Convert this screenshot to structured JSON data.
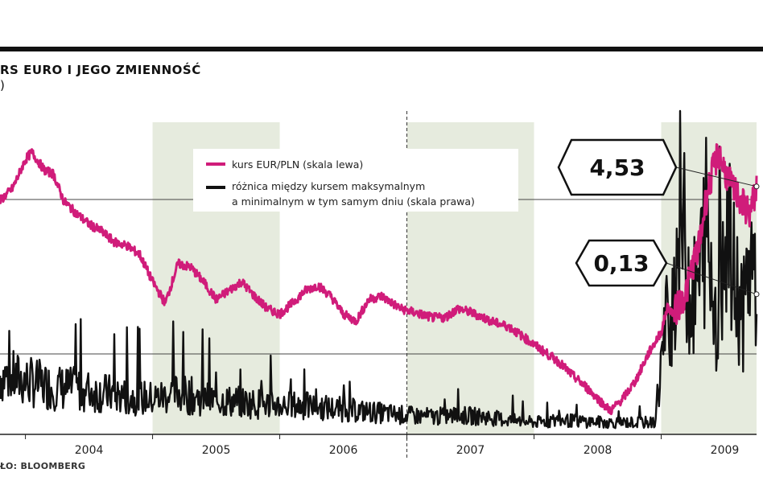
{
  "chart_data": {
    "type": "line",
    "title": "RS EURO I JEGO ZMIENNOŚĆ",
    "subtitle": ")",
    "source": "ŁO: BLOOMBERG",
    "x_tick_labels": [
      "2004",
      "2005",
      "2006",
      "2007",
      "2008",
      "2009"
    ],
    "xlim": [
      2003.3,
      2009.25
    ],
    "shaded_years": [
      2005,
      2007,
      2009
    ],
    "grid": "horizontal reference lines",
    "legend_position": "top-center",
    "colors": {
      "eur_pln": "#d01c7a",
      "spread": "#111111",
      "shade": "#e6ebde"
    },
    "series": [
      {
        "name": "kurs EUR/PLN (skala lewa)",
        "axis": "left",
        "color": "#d01c7a",
        "ylim": [
          3.15,
          4.95
        ],
        "x": [
          2003.3,
          2003.4,
          2003.5,
          2003.55,
          2003.65,
          2003.72,
          2003.8,
          2003.9,
          2004.0,
          2004.1,
          2004.2,
          2004.3,
          2004.4,
          2004.5,
          2004.6,
          2004.7,
          2004.8,
          2004.9,
          2005.0,
          2005.1,
          2005.2,
          2005.3,
          2005.4,
          2005.5,
          2005.6,
          2005.7,
          2005.8,
          2005.9,
          2006.0,
          2006.1,
          2006.2,
          2006.3,
          2006.45,
          2006.6,
          2006.7,
          2006.8,
          2006.9,
          2007.0,
          2007.1,
          2007.2,
          2007.3,
          2007.4,
          2007.5,
          2007.6,
          2007.7,
          2007.8,
          2007.9,
          2008.0,
          2008.1,
          2008.2,
          2008.3,
          2008.4,
          2008.5,
          2008.55,
          2008.6,
          2008.7,
          2008.75,
          2008.8,
          2008.85,
          2008.9,
          2008.95,
          2009.0,
          2009.05,
          2009.1,
          2009.15,
          2009.2,
          2009.25
        ],
        "values": [
          4.45,
          4.52,
          4.68,
          4.72,
          4.62,
          4.6,
          4.45,
          4.38,
          4.32,
          4.28,
          4.22,
          4.2,
          4.15,
          4.0,
          3.88,
          4.1,
          4.08,
          4.0,
          3.9,
          3.95,
          4.0,
          3.92,
          3.85,
          3.82,
          3.88,
          3.95,
          3.98,
          3.92,
          3.82,
          3.78,
          3.9,
          3.92,
          3.85,
          3.82,
          3.8,
          3.8,
          3.85,
          3.83,
          3.8,
          3.77,
          3.75,
          3.7,
          3.65,
          3.6,
          3.55,
          3.48,
          3.42,
          3.35,
          3.28,
          3.35,
          3.45,
          3.6,
          3.72,
          3.86,
          3.82,
          3.95,
          4.1,
          4.2,
          4.45,
          4.6,
          4.72,
          4.62,
          4.53,
          4.48,
          4.42,
          4.38,
          4.53
        ]
      },
      {
        "name": "różnica między kursem maksymalnym a minimalnym w tym samym dniu (skala prawa)",
        "axis": "right",
        "color": "#111111",
        "ylim": [
          0,
          0.3
        ],
        "x": [
          2003.3,
          2003.5,
          2003.7,
          2003.9,
          2004.1,
          2004.3,
          2004.5,
          2004.7,
          2004.9,
          2005.1,
          2005.3,
          2005.5,
          2005.7,
          2005.9,
          2006.1,
          2006.3,
          2006.5,
          2006.7,
          2006.9,
          2007.1,
          2007.3,
          2007.5,
          2007.7,
          2007.9,
          2008.1,
          2008.3,
          2008.45,
          2008.5,
          2008.55,
          2008.6,
          2008.65,
          2008.7,
          2008.75,
          2008.8,
          2008.85,
          2008.9,
          2008.95,
          2009.0,
          2009.05,
          2009.1,
          2009.15,
          2009.2,
          2009.25
        ],
        "values": [
          0.05,
          0.045,
          0.04,
          0.038,
          0.035,
          0.032,
          0.03,
          0.035,
          0.03,
          0.028,
          0.026,
          0.025,
          0.024,
          0.022,
          0.02,
          0.018,
          0.016,
          0.015,
          0.016,
          0.015,
          0.012,
          0.01,
          0.012,
          0.011,
          0.01,
          0.01,
          0.01,
          0.06,
          0.1,
          0.12,
          0.2,
          0.14,
          0.11,
          0.13,
          0.18,
          0.12,
          0.1,
          0.2,
          0.14,
          0.12,
          0.1,
          0.15,
          0.13
        ]
      }
    ],
    "callouts": [
      {
        "label": "4,53",
        "series": "kurs EUR/PLN (skala lewa)",
        "value": 4.53
      },
      {
        "label": "0,13",
        "series": "różnica między kursem maksymalnym a minimalnym w tym samym dniu (skala prawa)",
        "value": 0.13
      }
    ],
    "legend": [
      {
        "label": "kurs EUR/PLN (skala lewa)",
        "color": "#d01c7a"
      },
      {
        "label_line1": "różnica między kursem maksymalnym",
        "label_line2": "a minimalnym w tym samym dniu (skala prawa)",
        "color": "#111111"
      }
    ]
  }
}
